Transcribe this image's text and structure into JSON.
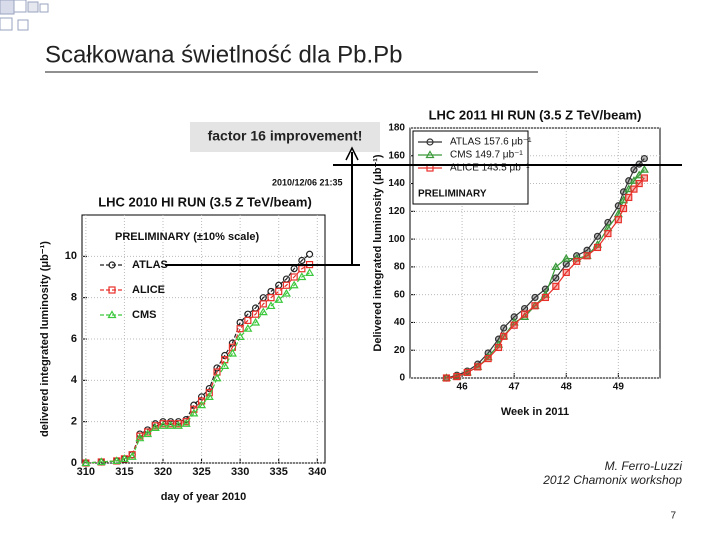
{
  "title": "Scałkowana świetlność dla Pb.Pb",
  "annotation": "factor 16 improvement!",
  "credit": [
    "M. Ferro-Luzzi",
    "2012 Chamonix workshop"
  ],
  "page_number": "7",
  "chart_data": [
    {
      "type": "line",
      "title": "LHC 2010 HI RUN (3.5 Z TeV/beam)",
      "subtitle": "PRELIMINARY (±10% scale)",
      "timestamp": "2010/12/06 21:35",
      "x_label": "day of year 2010",
      "y_label": "delivered integrated luminosity (μb⁻¹)",
      "x": [
        310,
        312,
        314,
        315,
        316,
        317,
        318,
        319,
        320,
        321,
        322,
        323,
        324,
        325,
        326,
        327,
        328,
        329,
        330,
        331,
        332,
        333,
        334,
        335,
        336,
        337,
        338,
        339
      ],
      "series": [
        {
          "name": "ATLAS",
          "color": "#222222",
          "marker": "circle",
          "values": [
            0,
            0.05,
            0.1,
            0.2,
            0.4,
            1.4,
            1.6,
            1.9,
            2.0,
            2.0,
            2.0,
            2.1,
            2.8,
            3.2,
            3.6,
            4.6,
            5.2,
            5.8,
            6.8,
            7.2,
            7.5,
            8.0,
            8.3,
            8.6,
            8.9,
            9.4,
            9.8,
            10.1
          ]
        },
        {
          "name": "ALICE",
          "color": "#e8302a",
          "marker": "square",
          "values": [
            0,
            0.05,
            0.1,
            0.2,
            0.4,
            1.3,
            1.5,
            1.8,
            1.9,
            1.9,
            1.9,
            2.0,
            2.6,
            3.0,
            3.4,
            4.4,
            5.0,
            5.6,
            6.5,
            6.9,
            7.2,
            7.7,
            8.0,
            8.3,
            8.6,
            9.0,
            9.4,
            9.6
          ]
        },
        {
          "name": "CMS",
          "color": "#3cc83c",
          "marker": "triangle",
          "values": [
            0,
            0.05,
            0.1,
            0.2,
            0.3,
            1.2,
            1.4,
            1.7,
            1.8,
            1.8,
            1.8,
            1.9,
            2.4,
            2.8,
            3.2,
            4.1,
            4.7,
            5.3,
            6.1,
            6.5,
            6.8,
            7.3,
            7.6,
            7.9,
            8.2,
            8.6,
            9.0,
            9.2
          ]
        }
      ],
      "dashed": true,
      "grid": true,
      "xlim": [
        309.5,
        341
      ],
      "xticks": [
        310,
        315,
        320,
        325,
        330,
        335,
        340
      ],
      "ylim": [
        0,
        12
      ],
      "yticks": [
        0,
        2,
        4,
        6,
        8,
        10
      ]
    },
    {
      "type": "line",
      "title": "LHC 2011 HI RUN (3.5 Z TeV/beam)",
      "subtitle": "PRELIMINARY",
      "x_label": "Week in 2011",
      "y_label": "Delivered integrated luminosity (μb⁻¹)",
      "x": [
        45.7,
        45.9,
        46.1,
        46.3,
        46.5,
        46.7,
        46.8,
        47.0,
        47.2,
        47.4,
        47.6,
        47.8,
        48.0,
        48.2,
        48.4,
        48.6,
        48.8,
        49.0,
        49.1,
        49.2,
        49.3,
        49.4,
        49.5
      ],
      "series": [
        {
          "name": "ATLAS 157.6 μb⁻¹",
          "color": "#333333",
          "marker": "circle",
          "values": [
            0,
            2,
            5,
            10,
            18,
            28,
            36,
            44,
            50,
            58,
            64,
            72,
            82,
            88,
            92,
            102,
            112,
            124,
            134,
            142,
            150,
            154,
            158
          ]
        },
        {
          "name": "CMS 149.7 μb⁻¹",
          "color": "#3a9a3a",
          "marker": "triangle",
          "values": [
            0,
            1,
            4,
            8,
            15,
            24,
            30,
            40,
            44,
            52,
            60,
            80,
            86,
            86,
            88,
            96,
            108,
            118,
            128,
            136,
            142,
            146,
            150
          ]
        },
        {
          "name": "ALICE 143.5 μb⁻¹",
          "color": "#e8302a",
          "marker": "square",
          "values": [
            0,
            1,
            4,
            8,
            14,
            22,
            30,
            38,
            46,
            52,
            58,
            66,
            76,
            84,
            88,
            94,
            104,
            114,
            122,
            130,
            136,
            140,
            144
          ]
        }
      ],
      "dashed": false,
      "grid": true,
      "xlim": [
        45.0,
        49.8
      ],
      "xticks": [
        46,
        47,
        48,
        49
      ],
      "ylim": [
        0,
        180
      ],
      "yticks": [
        0,
        20,
        40,
        60,
        80,
        100,
        120,
        140,
        160,
        180
      ]
    }
  ]
}
